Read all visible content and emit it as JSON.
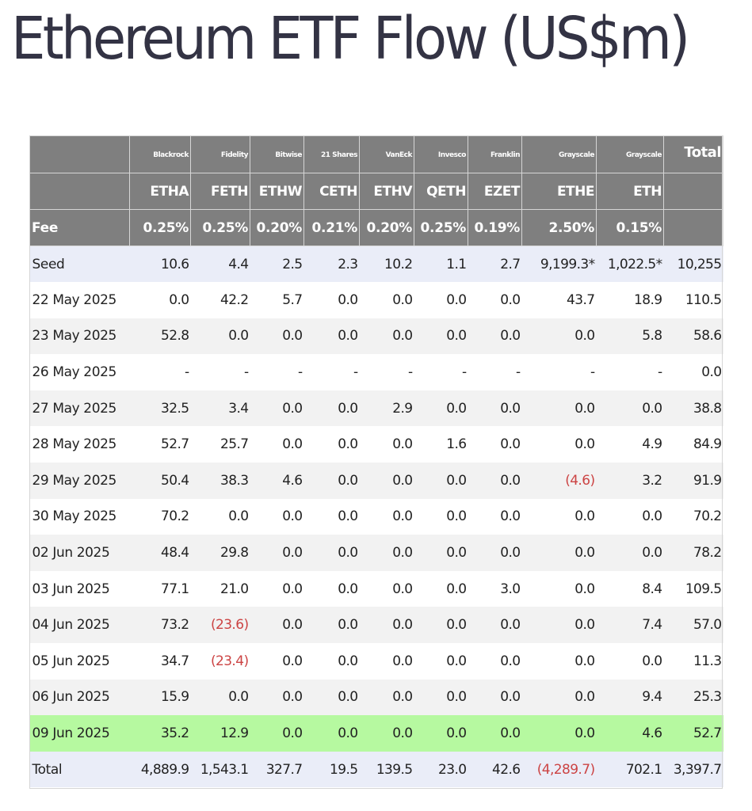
{
  "title": "Ethereum ETF Flow (US$m)",
  "table": {
    "issuers": [
      "",
      "Blackrock",
      "Fidelity",
      "Bitwise",
      "21 Shares",
      "VanEck",
      "Invesco",
      "Franklin",
      "Grayscale",
      "Grayscale",
      "Total"
    ],
    "tickers": [
      "",
      "ETHA",
      "FETH",
      "ETHW",
      "CETH",
      "ETHV",
      "QETH",
      "EZET",
      "ETHE",
      "ETH",
      ""
    ],
    "fees": [
      "Fee",
      "0.25%",
      "0.25%",
      "0.20%",
      "0.21%",
      "0.20%",
      "0.25%",
      "0.19%",
      "2.50%",
      "0.15%",
      ""
    ],
    "rows": [
      {
        "label": "Seed",
        "style": "seed",
        "cells": [
          "10.6",
          "4.4",
          "2.5",
          "2.3",
          "10.2",
          "1.1",
          "2.7",
          "9,199.3*",
          "1,022.5*",
          "10,255"
        ]
      },
      {
        "label": "22 May 2025",
        "style": "white",
        "cells": [
          "0.0",
          "42.2",
          "5.7",
          "0.0",
          "0.0",
          "0.0",
          "0.0",
          "43.7",
          "18.9",
          "110.5"
        ]
      },
      {
        "label": "23 May 2025",
        "style": "shade",
        "cells": [
          "52.8",
          "0.0",
          "0.0",
          "0.0",
          "0.0",
          "0.0",
          "0.0",
          "0.0",
          "5.8",
          "58.6"
        ]
      },
      {
        "label": "26 May 2025",
        "style": "white",
        "cells": [
          "-",
          "-",
          "-",
          "-",
          "-",
          "-",
          "-",
          "-",
          "-",
          "0.0"
        ]
      },
      {
        "label": "27 May 2025",
        "style": "shade",
        "cells": [
          "32.5",
          "3.4",
          "0.0",
          "0.0",
          "2.9",
          "0.0",
          "0.0",
          "0.0",
          "0.0",
          "38.8"
        ]
      },
      {
        "label": "28 May 2025",
        "style": "white",
        "cells": [
          "52.7",
          "25.7",
          "0.0",
          "0.0",
          "0.0",
          "1.6",
          "0.0",
          "0.0",
          "4.9",
          "84.9"
        ]
      },
      {
        "label": "29 May 2025",
        "style": "shade",
        "cells": [
          "50.4",
          "38.3",
          "4.6",
          "0.0",
          "0.0",
          "0.0",
          "0.0",
          "(4.6)",
          "3.2",
          "91.9"
        ]
      },
      {
        "label": "30 May 2025",
        "style": "white",
        "cells": [
          "70.2",
          "0.0",
          "0.0",
          "0.0",
          "0.0",
          "0.0",
          "0.0",
          "0.0",
          "0.0",
          "70.2"
        ]
      },
      {
        "label": "02 Jun 2025",
        "style": "shade",
        "cells": [
          "48.4",
          "29.8",
          "0.0",
          "0.0",
          "0.0",
          "0.0",
          "0.0",
          "0.0",
          "0.0",
          "78.2"
        ]
      },
      {
        "label": "03 Jun 2025",
        "style": "white",
        "cells": [
          "77.1",
          "21.0",
          "0.0",
          "0.0",
          "0.0",
          "0.0",
          "3.0",
          "0.0",
          "8.4",
          "109.5"
        ]
      },
      {
        "label": "04 Jun 2025",
        "style": "shade",
        "cells": [
          "73.2",
          "(23.6)",
          "0.0",
          "0.0",
          "0.0",
          "0.0",
          "0.0",
          "0.0",
          "7.4",
          "57.0"
        ]
      },
      {
        "label": "05 Jun 2025",
        "style": "white",
        "cells": [
          "34.7",
          "(23.4)",
          "0.0",
          "0.0",
          "0.0",
          "0.0",
          "0.0",
          "0.0",
          "0.0",
          "11.3"
        ]
      },
      {
        "label": "06 Jun 2025",
        "style": "shade",
        "cells": [
          "15.9",
          "0.0",
          "0.0",
          "0.0",
          "0.0",
          "0.0",
          "0.0",
          "0.0",
          "9.4",
          "25.3"
        ]
      },
      {
        "label": "09 Jun 2025",
        "style": "hl",
        "cells": [
          "35.2",
          "12.9",
          "0.0",
          "0.0",
          "0.0",
          "0.0",
          "0.0",
          "0.0",
          "4.6",
          "52.7"
        ]
      },
      {
        "label": "Total",
        "style": "totalrow",
        "cells": [
          "4,889.9",
          "1,543.1",
          "327.7",
          "19.5",
          "139.5",
          "23.0",
          "42.6",
          "(4,289.7)",
          "702.1",
          "3,397.7"
        ]
      }
    ]
  },
  "colors": {
    "header_bg": "#7f7f7f",
    "header_text": "#ffffff",
    "seed_total_bg": "#eaedf8",
    "stripe_bg": "#f2f2f2",
    "highlight_bg": "#b6f9a0",
    "negative_text": "#cc4444",
    "title_text": "#333344"
  }
}
